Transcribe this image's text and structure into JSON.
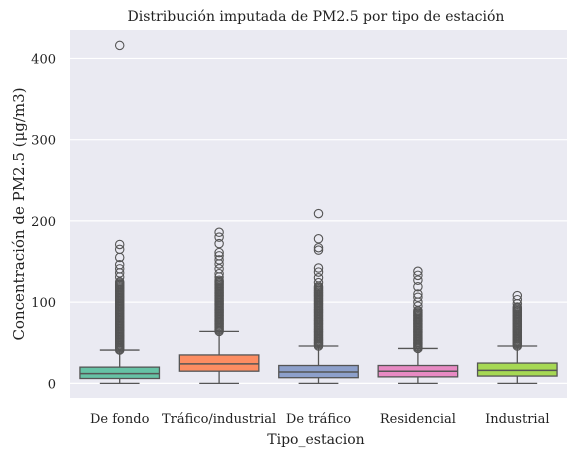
{
  "chart_data": {
    "type": "box",
    "title": "Distribución imputada de PM2.5 por tipo de estación",
    "xlabel": "Tipo_estacion",
    "ylabel": "Concentración de PM2.5 (μg/m3)",
    "ylim": [
      -18,
      435
    ],
    "yticks": [
      0,
      100,
      200,
      300,
      400
    ],
    "grid": true,
    "categories": [
      "De fondo",
      "Tráfico/industrial",
      "De tráfico",
      "Residencial",
      "Industrial"
    ],
    "colors": [
      "#66c2a5",
      "#fc8d62",
      "#8da0cb",
      "#e78ac3",
      "#a6d854"
    ],
    "boxes": [
      {
        "q1": 6,
        "median": 12,
        "q3": 20,
        "whisker_low": 0,
        "whisker_high": 41,
        "outlier_range": [
          41,
          125
        ],
        "outliers": [
          131,
          136,
          141,
          146,
          155,
          165,
          171,
          416
        ]
      },
      {
        "q1": 15,
        "median": 24,
        "q3": 35,
        "whisker_low": 0,
        "whisker_high": 64,
        "outlier_range": [
          64,
          128
        ],
        "outliers": [
          131,
          135,
          141,
          147,
          152,
          157,
          161,
          172,
          180,
          186
        ]
      },
      {
        "q1": 7,
        "median": 14,
        "q3": 22,
        "whisker_low": 0,
        "whisker_high": 46,
        "outlier_range": [
          46,
          120
        ],
        "outliers": [
          124,
          130,
          137,
          142,
          164,
          167,
          178,
          209
        ]
      },
      {
        "q1": 8,
        "median": 15,
        "q3": 22,
        "whisker_low": 0,
        "whisker_high": 43,
        "outlier_range": [
          43,
          90
        ],
        "outliers": [
          95,
          100,
          106,
          110,
          119,
          127,
          133,
          138
        ]
      },
      {
        "q1": 9,
        "median": 16,
        "q3": 25,
        "whisker_low": 0,
        "whisker_high": 46,
        "outlier_range": [
          46,
          95
        ],
        "outliers": [
          98,
          103,
          108
        ]
      }
    ]
  }
}
